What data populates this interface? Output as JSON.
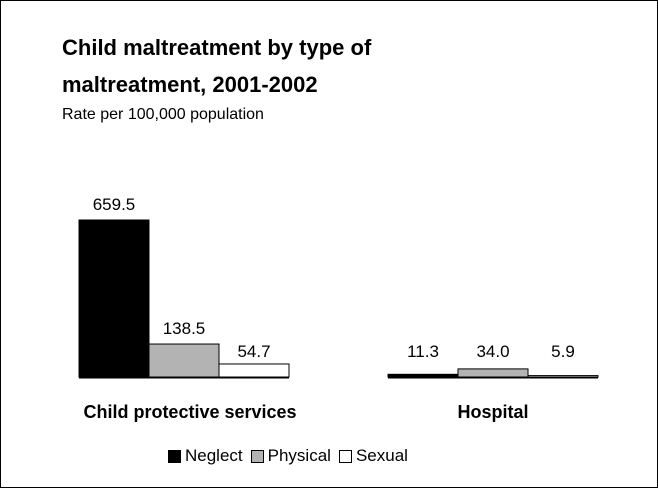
{
  "chart_data": {
    "type": "bar",
    "title_lines": [
      "Child maltreatment by type of",
      "maltreatment, 2001-2002"
    ],
    "subtitle": "Rate per 100,000 population",
    "categories": [
      "Child protective services",
      "Hospital"
    ],
    "series": [
      {
        "name": "Neglect",
        "values": [
          659.5,
          11.3
        ],
        "labels": [
          "659.5",
          "11.3"
        ],
        "color": "#000000"
      },
      {
        "name": "Physical",
        "values": [
          138.5,
          34.0
        ],
        "labels": [
          "138.5",
          "34.0"
        ],
        "color": "#b3b3b3"
      },
      {
        "name": "Sexual",
        "values": [
          54.7,
          5.9
        ],
        "labels": [
          "54.7",
          "5.9"
        ],
        "color": "#ffffff"
      }
    ],
    "ylim": [
      0,
      659.5
    ],
    "grid": false,
    "legend_position": "bottom"
  }
}
